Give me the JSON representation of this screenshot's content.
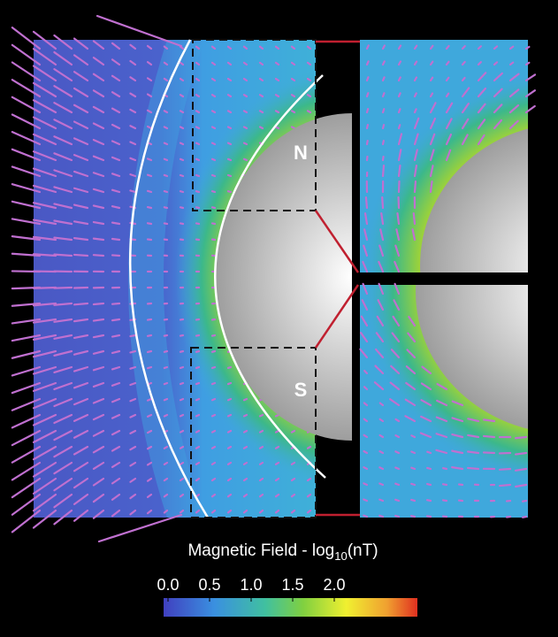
{
  "panels": {
    "north_label": "N",
    "south_label": "S"
  },
  "colorbar": {
    "title_main": "Magnetic Field - log",
    "title_sub": "10",
    "title_unit": "(nT)",
    "lim": [
      0,
      3
    ],
    "ticks": [
      {
        "value": 0,
        "label": "0.0"
      },
      {
        "value": 0.5,
        "label": "0.5"
      },
      {
        "value": 1,
        "label": "1.0"
      },
      {
        "value": 1.5,
        "label": "1.5"
      },
      {
        "value": 2,
        "label": "2.0"
      }
    ]
  }
}
